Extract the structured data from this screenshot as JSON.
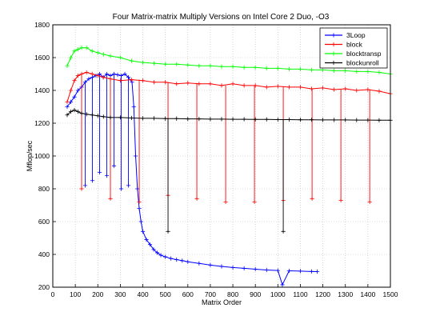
{
  "chart_data": {
    "type": "line",
    "title": "Four Matrix-matrix Multiply Versions on Intel Core 2 Duo, -O3",
    "xlabel": "Matrix Order",
    "ylabel": "Mflop/sec",
    "xlim": [
      0,
      1500
    ],
    "ylim": [
      200,
      1800
    ],
    "xticks": [
      0,
      100,
      200,
      300,
      400,
      500,
      600,
      700,
      800,
      900,
      1000,
      1100,
      1200,
      1300,
      1400,
      1500
    ],
    "yticks": [
      200,
      400,
      600,
      800,
      1000,
      1200,
      1400,
      1600,
      1800
    ],
    "grid": true,
    "legend_position": "top-right",
    "marker": "+",
    "series": [
      {
        "name": "3Loop",
        "color": "#0000ff",
        "x": [
          64,
          80,
          96,
          112,
          128,
          144,
          160,
          176,
          192,
          208,
          224,
          240,
          256,
          272,
          288,
          304,
          320,
          336,
          352,
          360,
          368,
          376,
          384,
          392,
          400,
          416,
          432,
          448,
          464,
          480,
          500,
          525,
          550,
          575,
          600,
          650,
          700,
          750,
          800,
          850,
          900,
          950,
          1000,
          1020,
          1050,
          1100,
          1150,
          1175
        ],
        "y": [
          1300,
          1330,
          1360,
          1400,
          1420,
          1450,
          1470,
          1480,
          1490,
          1500,
          1480,
          1500,
          1490,
          1500,
          1495,
          1490,
          1500,
          1480,
          1450,
          1300,
          1000,
          800,
          680,
          600,
          540,
          490,
          460,
          430,
          410,
          395,
          385,
          375,
          368,
          362,
          355,
          345,
          335,
          327,
          320,
          315,
          310,
          305,
          302,
          215,
          300,
          298,
          296,
          295
        ]
      },
      {
        "name": "block",
        "color": "#ff0000",
        "x": [
          64,
          80,
          96,
          112,
          128,
          150,
          175,
          200,
          225,
          256,
          300,
          350,
          400,
          450,
          500,
          550,
          600,
          650,
          700,
          750,
          800,
          850,
          900,
          950,
          1000,
          1050,
          1100,
          1150,
          1200,
          1250,
          1300,
          1350,
          1400,
          1450,
          1500
        ],
        "y": [
          1330,
          1400,
          1460,
          1490,
          1500,
          1510,
          1500,
          1490,
          1480,
          1470,
          1460,
          1465,
          1460,
          1450,
          1450,
          1440,
          1445,
          1440,
          1440,
          1430,
          1440,
          1430,
          1430,
          1420,
          1425,
          1420,
          1420,
          1410,
          1415,
          1405,
          1410,
          1400,
          1405,
          1395,
          1380
        ]
      },
      {
        "name": "blocktransp",
        "color": "#00ff00",
        "x": [
          64,
          80,
          96,
          112,
          128,
          150,
          175,
          200,
          225,
          256,
          300,
          350,
          400,
          450,
          500,
          550,
          600,
          650,
          700,
          750,
          800,
          850,
          900,
          950,
          1000,
          1050,
          1100,
          1150,
          1200,
          1250,
          1300,
          1350,
          1400,
          1450,
          1500
        ],
        "y": [
          1550,
          1600,
          1640,
          1650,
          1660,
          1660,
          1640,
          1630,
          1620,
          1610,
          1600,
          1580,
          1570,
          1565,
          1560,
          1560,
          1555,
          1550,
          1550,
          1545,
          1545,
          1540,
          1540,
          1535,
          1535,
          1530,
          1530,
          1525,
          1525,
          1520,
          1520,
          1515,
          1515,
          1510,
          1500
        ]
      },
      {
        "name": "blockunroll",
        "color": "#000000",
        "x": [
          64,
          80,
          96,
          112,
          128,
          150,
          175,
          200,
          225,
          256,
          300,
          350,
          400,
          450,
          500,
          550,
          600,
          650,
          700,
          750,
          800,
          850,
          900,
          950,
          1000,
          1050,
          1100,
          1150,
          1200,
          1250,
          1300,
          1350,
          1400,
          1450,
          1500
        ],
        "y": [
          1250,
          1270,
          1280,
          1270,
          1260,
          1255,
          1250,
          1245,
          1240,
          1235,
          1235,
          1232,
          1230,
          1230,
          1228,
          1228,
          1226,
          1226,
          1225,
          1225,
          1224,
          1224,
          1223,
          1223,
          1222,
          1222,
          1221,
          1221,
          1220,
          1220,
          1220,
          1219,
          1219,
          1218,
          1218
        ]
      }
    ],
    "dips": [
      {
        "series": "block",
        "x": 128,
        "y": 800
      },
      {
        "series": "block",
        "x": 256,
        "y": 740
      },
      {
        "series": "block",
        "x": 384,
        "y": 720
      },
      {
        "series": "block",
        "x": 512,
        "y": 760
      },
      {
        "series": "block",
        "x": 640,
        "y": 740
      },
      {
        "series": "block",
        "x": 768,
        "y": 720
      },
      {
        "series": "block",
        "x": 896,
        "y": 720
      },
      {
        "series": "block",
        "x": 1024,
        "y": 730
      },
      {
        "series": "block",
        "x": 1152,
        "y": 740
      },
      {
        "series": "block",
        "x": 1280,
        "y": 730
      },
      {
        "series": "block",
        "x": 1408,
        "y": 720
      },
      {
        "series": "blockunroll",
        "x": 512,
        "y": 540
      },
      {
        "series": "blockunroll",
        "x": 1024,
        "y": 540
      },
      {
        "series": "3Loop",
        "x": 144,
        "y": 820
      },
      {
        "series": "3Loop",
        "x": 176,
        "y": 850
      },
      {
        "series": "3Loop",
        "x": 208,
        "y": 900
      },
      {
        "series": "3Loop",
        "x": 240,
        "y": 880
      },
      {
        "series": "3Loop",
        "x": 272,
        "y": 940
      },
      {
        "series": "3Loop",
        "x": 304,
        "y": 800
      },
      {
        "series": "3Loop",
        "x": 336,
        "y": 820
      }
    ]
  }
}
